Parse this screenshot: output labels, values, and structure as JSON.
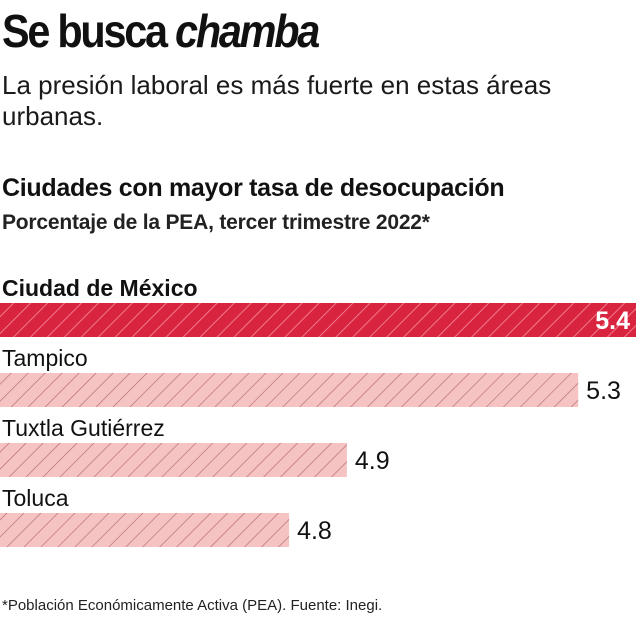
{
  "headline": {
    "regular": "Se busca",
    "italic": "chamba"
  },
  "dek": "La presión laboral es más fuerte en estas áreas urbanas.",
  "chart_data": {
    "type": "bar",
    "orientation": "horizontal",
    "title": "Ciudades con mayor tasa de desocupación",
    "subtitle": "Porcentaje de la PEA, tercer trimestre 2022*",
    "categories": [
      "Ciudad de México",
      "Tampico",
      "Tuxtla Gutiérrez",
      "Toluca"
    ],
    "values": [
      5.4,
      5.3,
      4.9,
      4.8
    ],
    "value_labels": [
      "5.4",
      "5.3",
      "4.9",
      "4.8"
    ],
    "highlight_index": 0,
    "xlim": [
      4.3,
      5.4
    ],
    "xlabel": "",
    "ylabel": "",
    "colors": {
      "highlight": "#d9243f",
      "highlight_hatch": "#f07a8d",
      "muted": "#f6c3c3",
      "muted_hatch": "#b46a6a",
      "highlight_text": "#ffffff",
      "label_text": "#111111"
    }
  },
  "footnote": "*Población Económicamente Activa (PEA). Fuente: Inegi."
}
